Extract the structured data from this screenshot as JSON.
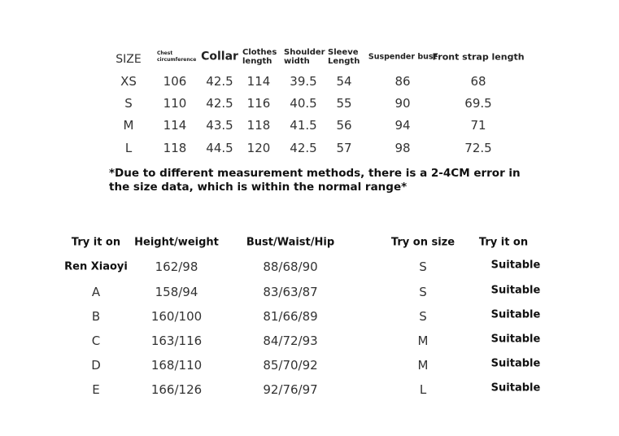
{
  "size_table": {
    "headers": [
      "SIZE",
      "Chest circumference",
      "Collar",
      "Clothes length",
      "Shoulder width",
      "Sleeve Length",
      "Suspender bust",
      "Front strap length"
    ],
    "rows": [
      [
        "XS",
        "106",
        "42.5",
        "114",
        "39.5",
        "54",
        "86",
        "68"
      ],
      [
        "S",
        "110",
        "42.5",
        "116",
        "40.5",
        "55",
        "90",
        "69.5"
      ],
      [
        "M",
        "114",
        "43.5",
        "118",
        "41.5",
        "56",
        "94",
        "71"
      ],
      [
        "L",
        "118",
        "44.5",
        "120",
        "42.5",
        "57",
        "98",
        "72.5"
      ]
    ]
  },
  "note": "*Due to different measurement methods, there is a 2-4CM error in the size data, which is within the normal range*",
  "try_table": {
    "headers": [
      "Try it on",
      "Height/weight",
      "Bust/Waist/Hip",
      "Try on size",
      "Try it on"
    ],
    "rows": [
      [
        "Ren Xiaoyi",
        "162/98",
        "88/68/90",
        "S",
        "Suitable"
      ],
      [
        "A",
        "158/94",
        "83/63/87",
        "S",
        "Suitable"
      ],
      [
        "B",
        "160/100",
        "81/66/89",
        "S",
        "Suitable"
      ],
      [
        "C",
        "163/116",
        "84/72/93",
        "M",
        "Suitable"
      ],
      [
        "D",
        "168/110",
        "85/70/92",
        "M",
        "Suitable"
      ],
      [
        "E",
        "166/126",
        "92/76/97",
        "L",
        "Suitable"
      ]
    ]
  }
}
